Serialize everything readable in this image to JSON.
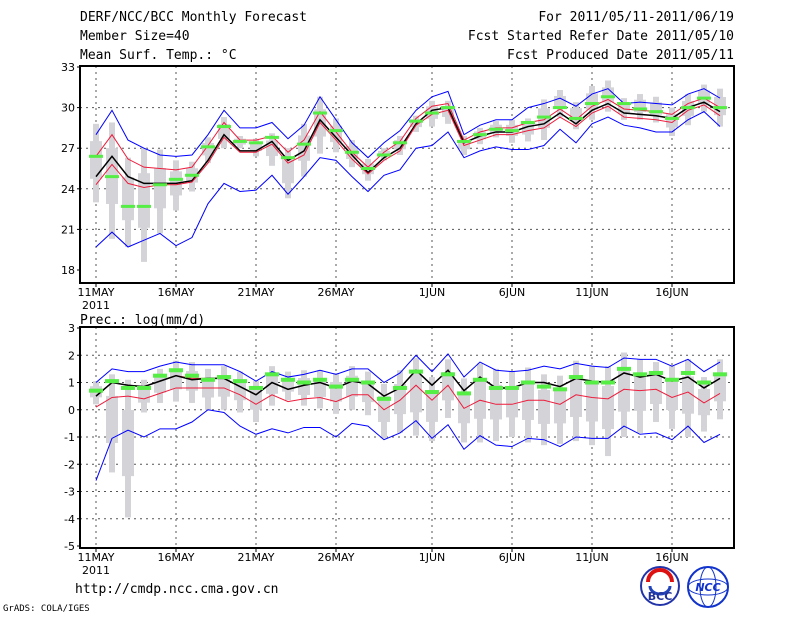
{
  "header": {
    "title": "DERF/NCC/BCC Monthly Forecast",
    "member_size": "Member Size=40",
    "period": "For 2011/05/11-2011/06/19",
    "fcst_started": "Fcst Started Refer Date 2011/05/10",
    "fcst_produced": "Fcst Produced Date 2011/05/11"
  },
  "footer": {
    "url": "http://cmdp.ncc.cma.gov.cn",
    "grads": "GrADS: COLA/IGES",
    "logo_left": "BCC",
    "logo_right": "NCC"
  },
  "colors": {
    "max_min": "#0000ff",
    "spread": "#ee1c3c",
    "mean": "#000000",
    "marker": "#55ee44",
    "box": "#d3d3d8"
  },
  "chart_data": [
    {
      "type": "line",
      "title": "Mean Surf. Temp.: °C",
      "ylim": [
        18,
        33
      ],
      "yticks": [
        "18",
        "21",
        "24",
        "27",
        "30",
        "33"
      ],
      "xticks": [
        {
          "day": 0,
          "label": "11MAY"
        },
        {
          "day": 5,
          "label": "16MAY"
        },
        {
          "day": 10,
          "label": "21MAY"
        },
        {
          "day": 15,
          "label": "26MAY"
        },
        {
          "day": 21,
          "label": "1JUN"
        },
        {
          "day": 26,
          "label": "6JUN"
        },
        {
          "day": 31,
          "label": "11JUN"
        },
        {
          "day": 36,
          "label": "16JUN"
        }
      ],
      "year_label": "2011",
      "series": [
        {
          "name": "max",
          "color": "blue",
          "values": [
            28.0,
            29.8,
            27.6,
            27.0,
            26.5,
            26.4,
            26.5,
            28.0,
            29.8,
            28.5,
            28.5,
            28.9,
            27.7,
            28.7,
            30.8,
            29.1,
            27.4,
            26.3,
            27.4,
            28.3,
            29.8,
            30.8,
            31.2,
            28.0,
            28.7,
            29.1,
            29.1,
            30.0,
            30.3,
            30.7,
            30.1,
            31.0,
            31.4,
            30.3,
            30.4,
            30.3,
            30.2,
            31.0,
            31.4,
            30.7
          ]
        },
        {
          "name": "upper",
          "color": "red",
          "values": [
            26.4,
            28.0,
            26.2,
            25.6,
            25.5,
            25.4,
            25.6,
            27.2,
            28.9,
            27.6,
            27.6,
            27.9,
            26.7,
            27.6,
            29.7,
            28.2,
            26.7,
            25.6,
            26.7,
            27.5,
            29.2,
            30.1,
            30.3,
            27.6,
            28.2,
            28.5,
            28.5,
            28.9,
            29.1,
            29.9,
            29.1,
            30.1,
            30.6,
            29.9,
            29.8,
            29.7,
            29.5,
            30.3,
            30.7,
            30.0
          ]
        },
        {
          "name": "mean",
          "color": "black",
          "values": [
            24.9,
            26.4,
            24.9,
            24.4,
            24.4,
            24.4,
            24.6,
            26.1,
            28.0,
            26.8,
            26.8,
            27.5,
            26.1,
            26.8,
            29.1,
            27.8,
            26.5,
            25.2,
            26.3,
            27.0,
            28.8,
            29.8,
            30.0,
            27.4,
            27.9,
            28.2,
            28.2,
            28.6,
            28.8,
            29.6,
            28.8,
            29.8,
            30.3,
            29.6,
            29.5,
            29.4,
            29.2,
            30.0,
            30.4,
            29.7
          ]
        },
        {
          "name": "lower",
          "color": "red",
          "values": [
            24.3,
            25.8,
            24.4,
            24.1,
            24.3,
            24.3,
            24.5,
            25.9,
            27.8,
            26.7,
            26.7,
            27.3,
            25.9,
            26.5,
            28.9,
            27.6,
            26.2,
            25.1,
            26.1,
            26.8,
            28.7,
            29.5,
            29.8,
            27.2,
            27.6,
            28.0,
            28.0,
            28.3,
            28.5,
            29.3,
            28.6,
            29.6,
            30.1,
            29.3,
            29.2,
            29.1,
            28.9,
            29.8,
            30.2,
            29.4
          ]
        },
        {
          "name": "min",
          "color": "blue",
          "values": [
            19.7,
            20.8,
            19.7,
            20.2,
            20.7,
            19.8,
            20.4,
            22.9,
            24.4,
            23.8,
            23.9,
            25.0,
            23.6,
            24.9,
            26.3,
            26.1,
            24.9,
            23.8,
            25.0,
            25.4,
            27.0,
            27.2,
            28.2,
            26.3,
            26.8,
            27.1,
            26.9,
            26.9,
            27.2,
            28.4,
            27.4,
            28.8,
            29.3,
            28.7,
            28.5,
            28.2,
            28.2,
            29.1,
            29.7,
            28.6
          ]
        },
        {
          "name": "marker",
          "color": "green",
          "values": [
            26.4,
            24.9,
            22.7,
            22.7,
            24.3,
            24.7,
            25.0,
            27.1,
            28.6,
            27.5,
            27.4,
            27.8,
            26.3,
            27.3,
            29.6,
            28.3,
            26.7,
            25.5,
            26.5,
            27.4,
            29.0,
            29.6,
            30.0,
            27.5,
            28.0,
            28.4,
            28.3,
            28.9,
            29.3,
            30.0,
            29.2,
            30.3,
            30.8,
            30.3,
            29.9,
            29.7,
            29.2,
            30.0,
            30.7,
            30.0
          ]
        }
      ],
      "box_max": [
        28.8,
        28.9,
        26.3,
        27.0,
        26.9,
        26.1,
        26.0,
        27.8,
        29.3,
        27.9,
        27.7,
        28.1,
        27.0,
        28.8,
        30.8,
        29.2,
        27.6,
        26.2,
        27.0,
        27.9,
        29.4,
        30.5,
        30.5,
        27.9,
        28.5,
        29.0,
        29.1,
        29.2,
        30.6,
        31.3,
        30.4,
        31.6,
        32.0,
        30.7,
        31.0,
        30.8,
        30.0,
        31.0,
        31.7,
        31.4
      ],
      "box_min": [
        23.0,
        20.3,
        19.7,
        18.6,
        20.7,
        22.4,
        23.8,
        25.9,
        27.0,
        27.0,
        26.4,
        25.7,
        23.3,
        24.9,
        26.6,
        26.7,
        25.6,
        24.6,
        26.1,
        26.5,
        28.2,
        28.6,
        28.8,
        26.5,
        27.3,
        27.8,
        27.4,
        27.5,
        27.6,
        29.3,
        28.4,
        29.1,
        29.7,
        29.1,
        29.1,
        28.9,
        27.9,
        28.7,
        29.7,
        28.6
      ]
    },
    {
      "type": "line",
      "title": "Prec.: log(mm/d)",
      "ylim": [
        -5,
        3
      ],
      "yticks": [
        "-5",
        "-4",
        "-3",
        "-2",
        "-1",
        "0",
        "1",
        "2",
        "3"
      ],
      "xticks": [
        {
          "day": 0,
          "label": "11MAY"
        },
        {
          "day": 5,
          "label": "16MAY"
        },
        {
          "day": 10,
          "label": "21MAY"
        },
        {
          "day": 15,
          "label": "26MAY"
        },
        {
          "day": 21,
          "label": "1JUN"
        },
        {
          "day": 26,
          "label": "6JUN"
        },
        {
          "day": 31,
          "label": "11JUN"
        },
        {
          "day": 36,
          "label": "16JUN"
        }
      ],
      "year_label": "2011",
      "series": [
        {
          "name": "max",
          "color": "blue",
          "values": [
            1.0,
            1.5,
            1.4,
            1.4,
            1.6,
            1.75,
            1.65,
            1.65,
            1.65,
            1.4,
            1.05,
            1.4,
            1.2,
            1.3,
            1.45,
            1.3,
            1.5,
            1.5,
            1.0,
            1.35,
            2.0,
            1.4,
            2.05,
            1.2,
            1.75,
            1.45,
            1.4,
            1.45,
            1.6,
            1.5,
            1.7,
            1.6,
            1.55,
            1.9,
            1.85,
            1.85,
            1.6,
            1.85,
            1.4,
            1.75
          ]
        },
        {
          "name": "upper",
          "color": "red",
          "values": [
            0.5,
            1.0,
            0.9,
            0.85,
            1.05,
            1.25,
            1.15,
            1.15,
            1.15,
            0.85,
            0.55,
            1.0,
            0.75,
            0.9,
            1.0,
            0.8,
            1.05,
            0.95,
            0.5,
            0.8,
            1.45,
            0.9,
            1.45,
            0.7,
            1.2,
            0.8,
            0.8,
            1.0,
            1.0,
            0.85,
            1.15,
            1.05,
            1.0,
            1.35,
            1.2,
            1.3,
            1.05,
            1.2,
            0.8,
            1.15
          ]
        },
        {
          "name": "mean",
          "color": "black",
          "values": [
            0.5,
            1.0,
            0.9,
            0.85,
            1.05,
            1.25,
            1.1,
            1.15,
            1.15,
            0.85,
            0.55,
            1.0,
            0.75,
            0.9,
            1.0,
            0.8,
            1.05,
            0.95,
            0.5,
            0.8,
            1.45,
            0.9,
            1.45,
            0.7,
            1.2,
            0.8,
            0.8,
            1.0,
            1.0,
            0.85,
            1.15,
            1.05,
            1.0,
            1.35,
            1.2,
            1.3,
            1.05,
            1.2,
            0.8,
            1.15
          ]
        },
        {
          "name": "lower",
          "color": "red",
          "values": [
            0.1,
            0.45,
            0.5,
            0.4,
            0.6,
            0.8,
            0.8,
            0.8,
            0.8,
            0.55,
            0.2,
            0.55,
            0.3,
            0.4,
            0.45,
            0.3,
            0.55,
            0.55,
            0.0,
            0.35,
            0.9,
            0.35,
            0.9,
            0.05,
            0.35,
            0.2,
            0.2,
            0.35,
            0.35,
            0.2,
            0.55,
            0.45,
            0.4,
            0.75,
            0.7,
            0.75,
            0.45,
            0.65,
            0.25,
            0.6
          ]
        },
        {
          "name": "min",
          "color": "blue",
          "values": [
            -2.6,
            -1.05,
            -0.75,
            -1.0,
            -0.7,
            -0.7,
            -0.45,
            0.0,
            -0.1,
            -0.6,
            -0.9,
            -0.7,
            -0.85,
            -0.65,
            -0.65,
            -1.0,
            -0.5,
            -0.6,
            -1.1,
            -0.85,
            -0.4,
            -1.05,
            -0.55,
            -1.45,
            -0.95,
            -1.3,
            -1.35,
            -1.05,
            -1.1,
            -1.35,
            -1.0,
            -1.05,
            -1.05,
            -0.6,
            -0.9,
            -0.85,
            -1.1,
            -0.6,
            -1.2,
            -0.9
          ]
        },
        {
          "name": "marker",
          "color": "green",
          "values": [
            0.7,
            1.05,
            0.8,
            0.8,
            1.25,
            1.45,
            1.25,
            1.1,
            1.2,
            1.05,
            0.8,
            1.3,
            1.1,
            1.0,
            1.1,
            0.85,
            1.1,
            1.0,
            0.4,
            0.8,
            1.4,
            0.65,
            1.3,
            0.6,
            1.1,
            0.8,
            0.8,
            1.0,
            0.85,
            0.75,
            1.2,
            1.0,
            1.0,
            1.5,
            1.3,
            1.35,
            1.1,
            1.35,
            1.0,
            1.3
          ]
        }
      ],
      "box_max": [
        1.05,
        1.3,
        1.1,
        1.1,
        1.5,
        1.8,
        1.75,
        1.5,
        1.6,
        1.4,
        1.05,
        1.6,
        1.4,
        1.45,
        1.45,
        1.35,
        1.6,
        1.4,
        0.95,
        1.45,
        1.9,
        1.2,
        1.85,
        1.15,
        1.7,
        1.5,
        1.4,
        1.55,
        1.3,
        1.25,
        1.8,
        1.6,
        1.6,
        2.1,
        1.85,
        1.75,
        1.6,
        1.85,
        1.2,
        1.85
      ],
      "box_min": [
        0.2,
        -2.3,
        -3.95,
        -0.1,
        0.25,
        0.3,
        0.25,
        0.0,
        0.0,
        -0.1,
        -0.45,
        0.15,
        0.35,
        0.15,
        0.05,
        -0.15,
        0.0,
        -0.2,
        -1.05,
        -0.85,
        -0.95,
        -1.15,
        -0.3,
        -1.2,
        -1.2,
        -1.15,
        -1.0,
        -1.2,
        -1.3,
        -1.25,
        -1.15,
        -1.3,
        -1.7,
        -1.0,
        -0.85,
        -0.45,
        -0.7,
        -1.0,
        -0.8,
        -0.35
      ]
    }
  ]
}
